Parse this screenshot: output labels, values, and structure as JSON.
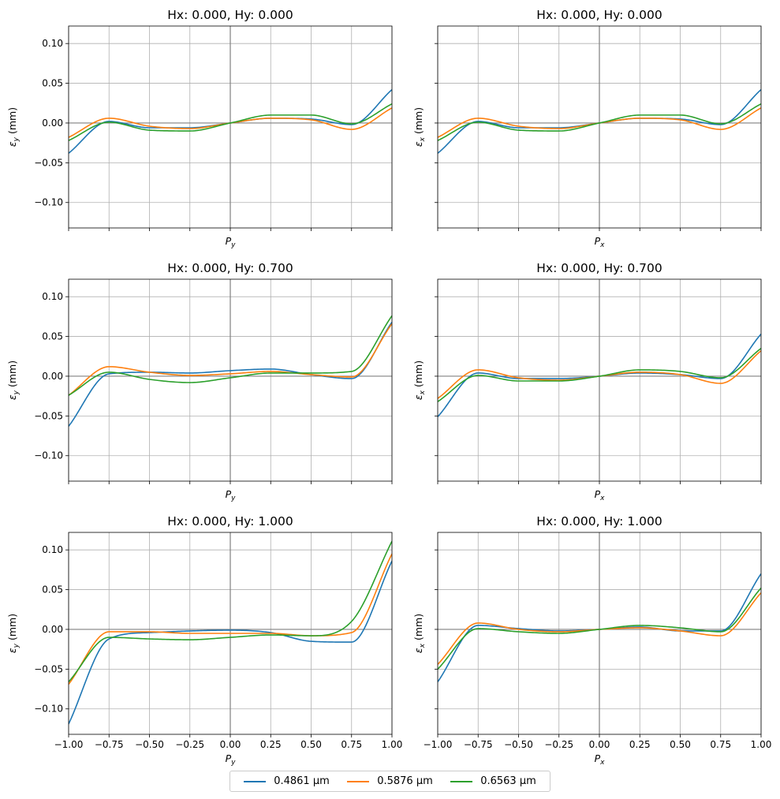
{
  "colors": [
    "#1f77b4",
    "#ff7f0e",
    "#2ca02c"
  ],
  "legend": [
    "0.4861 µm",
    "0.5876 µm",
    "0.6563 µm"
  ],
  "chart_data": {
    "type": "line",
    "grid": true,
    "sharex": true,
    "sharey": true,
    "xlim": [
      -1.0,
      1.0
    ],
    "ylim": [
      -0.132,
      0.122
    ],
    "xticks": [
      -1.0,
      -0.75,
      -0.5,
      -0.25,
      0.0,
      0.25,
      0.5,
      0.75,
      1.0
    ],
    "xtick_labels": [
      "−1.00",
      "−0.75",
      "−0.50",
      "−0.25",
      "0.00",
      "0.25",
      "0.50",
      "0.75",
      "1.00"
    ],
    "yticks": [
      -0.1,
      -0.05,
      0.0,
      0.05,
      0.1
    ],
    "ytick_labels": [
      "−0.10",
      "−0.05",
      "0.00",
      "0.05",
      "0.10"
    ],
    "x": [
      -1.0,
      -0.75,
      -0.5,
      -0.25,
      0.0,
      0.25,
      0.5,
      0.75,
      1.0
    ],
    "subplots": [
      {
        "title": "Hx: 0.000, Hy: 0.000",
        "xlabel_sym": "P",
        "xlabel_sub": "y",
        "ylabel_sym": "ε",
        "ylabel_sub": "y",
        "ylabel_unit": " (mm)",
        "series": [
          {
            "name": "0.4861 µm",
            "values": [
              -0.038,
              0.002,
              -0.006,
              -0.006,
              0.0,
              0.006,
              0.005,
              -0.002,
              0.042
            ]
          },
          {
            "name": "0.5876 µm",
            "values": [
              -0.018,
              0.006,
              -0.004,
              -0.007,
              0.0,
              0.006,
              0.004,
              -0.008,
              0.019
            ]
          },
          {
            "name": "0.6563 µm",
            "values": [
              -0.022,
              0.001,
              -0.009,
              -0.01,
              0.0,
              0.01,
              0.01,
              -0.001,
              0.024
            ]
          }
        ]
      },
      {
        "title": "Hx: 0.000, Hy: 0.000",
        "xlabel_sym": "P",
        "xlabel_sub": "x",
        "ylabel_sym": "ε",
        "ylabel_sub": "x",
        "ylabel_unit": " (mm)",
        "series": [
          {
            "name": "0.4861 µm",
            "values": [
              -0.038,
              0.002,
              -0.006,
              -0.006,
              0.0,
              0.006,
              0.005,
              -0.002,
              0.042
            ]
          },
          {
            "name": "0.5876 µm",
            "values": [
              -0.018,
              0.006,
              -0.004,
              -0.007,
              0.0,
              0.006,
              0.004,
              -0.008,
              0.019
            ]
          },
          {
            "name": "0.6563 µm",
            "values": [
              -0.022,
              0.001,
              -0.009,
              -0.01,
              0.0,
              0.01,
              0.01,
              -0.001,
              0.024
            ]
          }
        ]
      },
      {
        "title": "Hx: 0.000, Hy: 0.700",
        "xlabel_sym": "P",
        "xlabel_sub": "y",
        "ylabel_sym": "ε",
        "ylabel_sub": "y",
        "ylabel_unit": " (mm)",
        "series": [
          {
            "name": "0.4861 µm",
            "values": [
              -0.063,
              0.003,
              0.005,
              0.004,
              0.007,
              0.009,
              0.002,
              -0.003,
              0.068
            ]
          },
          {
            "name": "0.5876 µm",
            "values": [
              -0.024,
              0.012,
              0.005,
              0.001,
              0.003,
              0.006,
              0.002,
              -0.001,
              0.066
            ]
          },
          {
            "name": "0.6563 µm",
            "values": [
              -0.024,
              0.005,
              -0.004,
              -0.008,
              -0.002,
              0.004,
              0.004,
              0.006,
              0.076
            ]
          }
        ]
      },
      {
        "title": "Hx: 0.000, Hy: 0.700",
        "xlabel_sym": "P",
        "xlabel_sub": "x",
        "ylabel_sym": "ε",
        "ylabel_sub": "x",
        "ylabel_unit": " (mm)",
        "series": [
          {
            "name": "0.4861 µm",
            "values": [
              -0.051,
              0.004,
              -0.003,
              -0.003,
              0.0,
              0.004,
              0.002,
              -0.003,
              0.053
            ]
          },
          {
            "name": "0.5876 µm",
            "values": [
              -0.028,
              0.008,
              -0.002,
              -0.005,
              0.0,
              0.005,
              0.002,
              -0.009,
              0.032
            ]
          },
          {
            "name": "0.6563 µm",
            "values": [
              -0.032,
              0.001,
              -0.006,
              -0.006,
              0.0,
              0.008,
              0.006,
              -0.002,
              0.035
            ]
          }
        ]
      },
      {
        "title": "Hx: 0.000, Hy: 1.000",
        "xlabel_sym": "P",
        "xlabel_sub": "y",
        "ylabel_sym": "ε",
        "ylabel_sub": "y",
        "ylabel_unit": " (mm)",
        "series": [
          {
            "name": "0.4861 µm",
            "values": [
              -0.119,
              -0.012,
              -0.004,
              -0.002,
              -0.001,
              -0.004,
              -0.015,
              -0.016,
              0.086
            ]
          },
          {
            "name": "0.5876 µm",
            "values": [
              -0.069,
              -0.003,
              -0.003,
              -0.005,
              -0.005,
              -0.005,
              -0.008,
              -0.004,
              0.095
            ]
          },
          {
            "name": "0.6563 µm",
            "values": [
              -0.066,
              -0.01,
              -0.012,
              -0.013,
              -0.01,
              -0.007,
              -0.008,
              0.01,
              0.111
            ]
          }
        ]
      },
      {
        "title": "Hx: 0.000, Hy: 1.000",
        "xlabel_sym": "P",
        "xlabel_sub": "x",
        "ylabel_sym": "ε",
        "ylabel_sub": "x",
        "ylabel_unit": " (mm)",
        "series": [
          {
            "name": "0.4861 µm",
            "values": [
              -0.066,
              0.005,
              0.001,
              -0.002,
              0.0,
              0.003,
              -0.002,
              -0.002,
              0.07
            ]
          },
          {
            "name": "0.5876 µm",
            "values": [
              -0.044,
              0.008,
              0.0,
              -0.003,
              0.0,
              0.002,
              -0.002,
              -0.008,
              0.046
            ]
          },
          {
            "name": "0.6563 µm",
            "values": [
              -0.05,
              0.001,
              -0.003,
              -0.005,
              0.0,
              0.005,
              0.002,
              -0.003,
              0.052
            ]
          }
        ]
      }
    ]
  }
}
